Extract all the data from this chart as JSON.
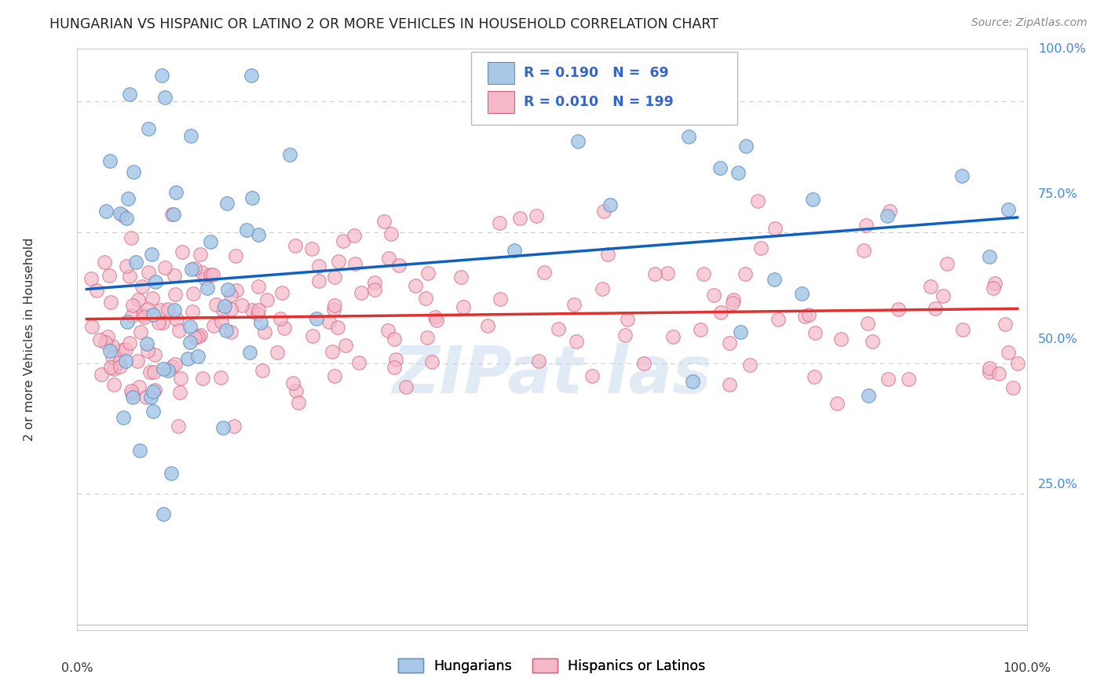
{
  "title": "HUNGARIAN VS HISPANIC OR LATINO 2 OR MORE VEHICLES IN HOUSEHOLD CORRELATION CHART",
  "source": "Source: ZipAtlas.com",
  "ylabel": "2 or more Vehicles in Household",
  "blue_color": "#a8c8e8",
  "pink_color": "#f5b8c8",
  "blue_edge": "#6090c0",
  "pink_edge": "#d06080",
  "trend_blue": "#1060c0",
  "trend_pink": "#e03030",
  "blue_R": 0.19,
  "blue_N": 69,
  "pink_R": 0.01,
  "pink_N": 199,
  "blue_seed": 42,
  "pink_seed": 99,
  "legend_label_blue": "R = 0.190   N =  69",
  "legend_label_pink": "R = 0.010   N = 199",
  "bottom_legend_blue": "Hungarians",
  "bottom_legend_pink": "Hispanics or Latinos"
}
